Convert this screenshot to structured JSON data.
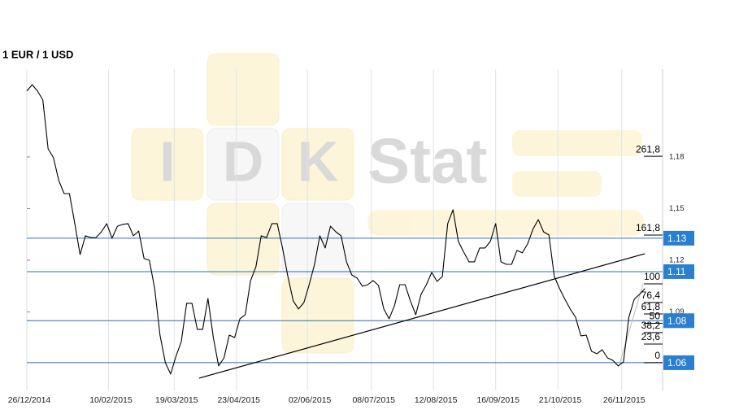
{
  "chart_data": {
    "type": "line",
    "title": "1 EUR / 1 USD",
    "watermark": {
      "letters": [
        "I",
        "D",
        "K"
      ],
      "word": "Stat"
    },
    "color": "#000000",
    "xlim": [
      "26/12/2014",
      "19/12/2015"
    ],
    "xticks": [
      "26/12/2014",
      "10/02/2015",
      "19/03/2015",
      "23/04/2015",
      "02/06/2015",
      "08/07/2015",
      "12/08/2015",
      "16/09/2015",
      "21/10/2015",
      "26/11/2015"
    ],
    "ylim": [
      1.0444,
      1.231
    ],
    "yticks": [
      {
        "value": 1.18,
        "label": "1,18"
      },
      {
        "value": 1.15,
        "label": "1,15"
      },
      {
        "value": 1.12,
        "label": "1,12"
      },
      {
        "value": 1.09,
        "label": "1,09"
      }
    ],
    "grid": true,
    "x": [
      "26/12/2014",
      "29/12/2014",
      "01/01/2015",
      "04/01/2015",
      "07/01/2015",
      "10/01/2015",
      "13/01/2015",
      "16/01/2015",
      "19/01/2015",
      "22/01/2015",
      "25/01/2015",
      "28/01/2015",
      "31/01/2015",
      "03/02/2015",
      "06/02/2015",
      "09/02/2015",
      "12/02/2015",
      "15/02/2015",
      "18/02/2015",
      "21/02/2015",
      "24/02/2015",
      "27/02/2015",
      "02/03/2015",
      "05/03/2015",
      "08/03/2015",
      "11/03/2015",
      "14/03/2015",
      "17/03/2015",
      "20/03/2015",
      "23/03/2015",
      "26/03/2015",
      "29/03/2015",
      "01/04/2015",
      "04/04/2015",
      "07/04/2015",
      "10/04/2015",
      "13/04/2015",
      "16/04/2015",
      "19/04/2015",
      "22/04/2015",
      "25/04/2015",
      "28/04/2015",
      "01/05/2015",
      "04/05/2015",
      "07/05/2015",
      "10/05/2015",
      "13/05/2015",
      "16/05/2015",
      "19/05/2015",
      "22/05/2015",
      "25/05/2015",
      "28/05/2015",
      "31/05/2015",
      "03/06/2015",
      "06/06/2015",
      "09/06/2015",
      "12/06/2015",
      "15/06/2015",
      "18/06/2015",
      "21/06/2015",
      "24/06/2015",
      "27/06/2015",
      "30/06/2015",
      "03/07/2015",
      "06/07/2015",
      "09/07/2015",
      "12/07/2015",
      "15/07/2015",
      "18/07/2015",
      "21/07/2015",
      "24/07/2015",
      "27/07/2015",
      "30/07/2015",
      "02/08/2015",
      "05/08/2015",
      "08/08/2015",
      "11/08/2015",
      "14/08/2015",
      "17/08/2015",
      "20/08/2015",
      "23/08/2015",
      "26/08/2015",
      "29/08/2015",
      "01/09/2015",
      "04/09/2015",
      "07/09/2015",
      "10/09/2015",
      "13/09/2015",
      "16/09/2015",
      "19/09/2015",
      "22/09/2015",
      "25/09/2015",
      "28/09/2015",
      "01/10/2015",
      "04/10/2015",
      "07/10/2015",
      "10/10/2015",
      "13/10/2015",
      "16/10/2015",
      "19/10/2015",
      "22/10/2015",
      "25/10/2015",
      "28/10/2015",
      "31/10/2015",
      "03/11/2015",
      "06/11/2015",
      "09/11/2015",
      "12/11/2015",
      "15/11/2015",
      "18/11/2015",
      "21/11/2015",
      "24/11/2015",
      "27/11/2015",
      "30/11/2015",
      "03/12/2015",
      "06/12/2015",
      "09/12/2015"
    ],
    "values": [
      1.2183,
      1.222,
      1.2183,
      1.2131,
      1.1847,
      1.1795,
      1.1663,
      1.1587,
      1.1587,
      1.1413,
      1.1233,
      1.1342,
      1.1332,
      1.1332,
      1.1365,
      1.1413,
      1.1328,
      1.1398,
      1.1408,
      1.1413,
      1.1342,
      1.137,
      1.121,
      1.12,
      1.1035,
      1.0765,
      1.0605,
      1.0539,
      1.0643,
      1.0728,
      1.095,
      1.095,
      1.0799,
      1.0799,
      1.0978,
      1.0751,
      1.0586,
      1.0633,
      1.0765,
      1.0751,
      1.086,
      1.0884,
      1.1082,
      1.1162,
      1.1342,
      1.1332,
      1.1413,
      1.1413,
      1.1271,
      1.1106,
      1.0964,
      1.0917,
      1.0954,
      1.1058,
      1.1176,
      1.1342,
      1.1271,
      1.1398,
      1.1365,
      1.1342,
      1.1191,
      1.1115,
      1.1096,
      1.1049,
      1.1058,
      1.1082,
      1.1054,
      1.0917,
      1.086,
      1.0936,
      1.1058,
      1.1058,
      1.0964,
      1.0884,
      1.1002,
      1.1058,
      1.1129,
      1.1077,
      1.1106,
      1.1413,
      1.1493,
      1.1309,
      1.1247,
      1.1191,
      1.1191,
      1.1271,
      1.1271,
      1.1309,
      1.1413,
      1.1191,
      1.1176,
      1.1176,
      1.1257,
      1.1243,
      1.1295,
      1.138,
      1.1436,
      1.1365,
      1.1347,
      1.1106,
      1.1035,
      1.0973,
      1.0917,
      1.0869,
      1.0761,
      1.0765,
      1.0671,
      1.0657,
      1.068,
      1.0633,
      1.0619,
      1.0586,
      1.061,
      1.0869,
      1.0973,
      1.1002,
      1.1035
    ],
    "trend_line": {
      "x": [
        "02/04/2015",
        "09/12/2015"
      ],
      "values": [
        1.0515,
        1.1238
      ]
    },
    "levels": [
      {
        "value": 1.1328,
        "label": "1.13"
      },
      {
        "value": 1.1134,
        "label": "1.11"
      },
      {
        "value": 1.0849,
        "label": "1.08"
      },
      {
        "value": 1.0605,
        "label": "1.06"
      }
    ],
    "level_color": "#2f6fb5",
    "label_color": "#2a7fd1",
    "fibonacci": {
      "low": 1.0605,
      "high": 1.1063,
      "low_date": "25/11/2015",
      "high_date": "08/12/2015",
      "levels": [
        {
          "value": 261.8,
          "label": "261,8"
        },
        {
          "value": 161.8,
          "label": "161,8"
        },
        100,
        {
          "value": 76.4,
          "label": "76,4"
        },
        {
          "value": 61.8,
          "label": "61,8"
        },
        50,
        {
          "value": 38.2,
          "label": "38,2"
        },
        {
          "value": 23.6,
          "label": "23,6"
        },
        0
      ]
    }
  }
}
